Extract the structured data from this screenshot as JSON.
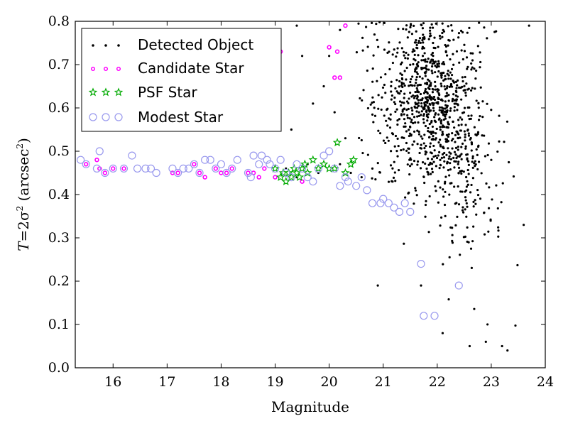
{
  "chart_data": {
    "type": "scatter",
    "xlabel": "Magnitude",
    "ylabel_parts": {
      "pre": "T",
      "mid": "=2σ",
      "sup": "2",
      "unit": " (arcsec",
      "unit_sup": "2",
      "close": ")"
    },
    "xlim": [
      15.3,
      24.0
    ],
    "ylim": [
      0.0,
      0.8
    ],
    "xticks": [
      "16",
      "17",
      "18",
      "19",
      "20",
      "21",
      "22",
      "23",
      "24"
    ],
    "yticks": [
      "0.0",
      "0.1",
      "0.2",
      "0.3",
      "0.4",
      "0.5",
      "0.6",
      "0.7",
      "0.8"
    ],
    "legend_position": "top-left",
    "series": [
      {
        "name": "Detected Object",
        "marker": "dot",
        "color": "#000000",
        "generated_region": {
          "count": 1000,
          "x_range": [
            20.5,
            23.7
          ],
          "y_range": [
            0.02,
            0.8
          ]
        },
        "points": [
          [
            19.2,
            0.46
          ],
          [
            19.4,
            0.44
          ],
          [
            19.6,
            0.47
          ],
          [
            19.8,
            0.45
          ],
          [
            20.0,
            0.46
          ],
          [
            20.2,
            0.47
          ],
          [
            20.4,
            0.45
          ],
          [
            20.6,
            0.44
          ],
          [
            20.8,
            0.46
          ],
          [
            20.9,
            0.19
          ],
          [
            21.7,
            0.19
          ],
          [
            22.1,
            0.08
          ],
          [
            22.6,
            0.05
          ],
          [
            22.9,
            0.06
          ],
          [
            23.2,
            0.05
          ],
          [
            23.3,
            0.04
          ],
          [
            23.6,
            0.33
          ],
          [
            23.7,
            0.79
          ],
          [
            19.9,
            0.65
          ],
          [
            20.0,
            0.72
          ],
          [
            20.1,
            0.59
          ],
          [
            19.5,
            0.72
          ],
          [
            19.3,
            0.55
          ],
          [
            19.7,
            0.61
          ],
          [
            20.3,
            0.53
          ],
          [
            19.4,
            0.79
          ],
          [
            20.2,
            0.78
          ]
        ]
      },
      {
        "name": "Candidate Star",
        "marker": "circle",
        "color": "#ff00ff",
        "points": [
          [
            15.5,
            0.47
          ],
          [
            15.7,
            0.48
          ],
          [
            15.75,
            0.46
          ],
          [
            15.85,
            0.45
          ],
          [
            16.0,
            0.46
          ],
          [
            16.2,
            0.46
          ],
          [
            17.1,
            0.45
          ],
          [
            17.2,
            0.45
          ],
          [
            17.5,
            0.47
          ],
          [
            17.6,
            0.45
          ],
          [
            17.7,
            0.44
          ],
          [
            17.9,
            0.46
          ],
          [
            18.0,
            0.45
          ],
          [
            18.1,
            0.45
          ],
          [
            18.2,
            0.46
          ],
          [
            18.5,
            0.45
          ],
          [
            18.6,
            0.45
          ],
          [
            18.7,
            0.44
          ],
          [
            18.8,
            0.46
          ],
          [
            19.0,
            0.44
          ],
          [
            19.5,
            0.43
          ],
          [
            19.1,
            0.73
          ],
          [
            20.0,
            0.74
          ],
          [
            20.15,
            0.73
          ],
          [
            20.1,
            0.67
          ],
          [
            20.2,
            0.67
          ],
          [
            20.3,
            0.79
          ]
        ]
      },
      {
        "name": "PSF Star",
        "marker": "star",
        "color": "#00aa00",
        "points": [
          [
            19.0,
            0.46
          ],
          [
            19.1,
            0.44
          ],
          [
            19.15,
            0.45
          ],
          [
            19.2,
            0.43
          ],
          [
            19.25,
            0.45
          ],
          [
            19.3,
            0.44
          ],
          [
            19.35,
            0.46
          ],
          [
            19.4,
            0.45
          ],
          [
            19.45,
            0.44
          ],
          [
            19.5,
            0.46
          ],
          [
            19.55,
            0.47
          ],
          [
            19.6,
            0.45
          ],
          [
            19.7,
            0.48
          ],
          [
            19.8,
            0.46
          ],
          [
            19.9,
            0.47
          ],
          [
            20.0,
            0.46
          ],
          [
            20.1,
            0.46
          ],
          [
            20.15,
            0.52
          ],
          [
            20.3,
            0.45
          ],
          [
            20.4,
            0.47
          ],
          [
            20.45,
            0.48
          ]
        ]
      },
      {
        "name": "Modest Star",
        "marker": "ring",
        "color": "#9999ee",
        "points": [
          [
            15.4,
            0.48
          ],
          [
            15.5,
            0.47
          ],
          [
            15.7,
            0.46
          ],
          [
            15.75,
            0.5
          ],
          [
            15.85,
            0.45
          ],
          [
            16.0,
            0.46
          ],
          [
            16.2,
            0.46
          ],
          [
            16.35,
            0.49
          ],
          [
            16.45,
            0.46
          ],
          [
            16.6,
            0.46
          ],
          [
            16.7,
            0.46
          ],
          [
            16.8,
            0.45
          ],
          [
            17.1,
            0.46
          ],
          [
            17.2,
            0.45
          ],
          [
            17.3,
            0.46
          ],
          [
            17.4,
            0.46
          ],
          [
            17.5,
            0.47
          ],
          [
            17.6,
            0.45
          ],
          [
            17.7,
            0.48
          ],
          [
            17.8,
            0.48
          ],
          [
            17.9,
            0.46
          ],
          [
            18.0,
            0.47
          ],
          [
            18.1,
            0.45
          ],
          [
            18.2,
            0.46
          ],
          [
            18.3,
            0.48
          ],
          [
            18.5,
            0.45
          ],
          [
            18.55,
            0.44
          ],
          [
            18.6,
            0.49
          ],
          [
            18.7,
            0.47
          ],
          [
            18.75,
            0.49
          ],
          [
            18.85,
            0.48
          ],
          [
            18.9,
            0.47
          ],
          [
            19.0,
            0.46
          ],
          [
            19.1,
            0.48
          ],
          [
            19.2,
            0.45
          ],
          [
            19.3,
            0.44
          ],
          [
            19.4,
            0.47
          ],
          [
            19.5,
            0.46
          ],
          [
            19.6,
            0.44
          ],
          [
            19.7,
            0.43
          ],
          [
            19.8,
            0.46
          ],
          [
            19.9,
            0.49
          ],
          [
            20.0,
            0.5
          ],
          [
            20.1,
            0.46
          ],
          [
            20.2,
            0.42
          ],
          [
            20.3,
            0.44
          ],
          [
            20.35,
            0.43
          ],
          [
            20.5,
            0.42
          ],
          [
            20.6,
            0.44
          ],
          [
            20.7,
            0.41
          ],
          [
            20.8,
            0.38
          ],
          [
            20.95,
            0.38
          ],
          [
            21.0,
            0.39
          ],
          [
            21.1,
            0.38
          ],
          [
            21.2,
            0.37
          ],
          [
            21.3,
            0.36
          ],
          [
            21.4,
            0.38
          ],
          [
            21.5,
            0.36
          ],
          [
            21.7,
            0.24
          ],
          [
            21.75,
            0.12
          ],
          [
            21.95,
            0.12
          ],
          [
            22.4,
            0.19
          ]
        ]
      }
    ]
  }
}
